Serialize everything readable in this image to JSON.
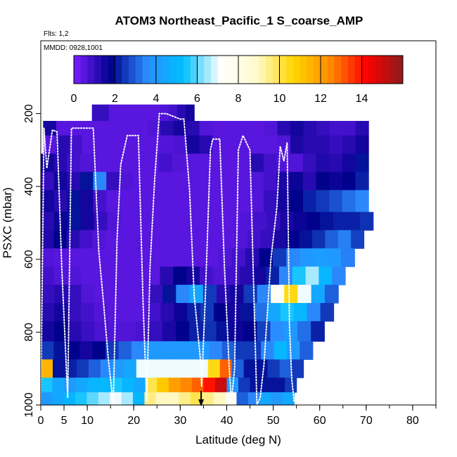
{
  "chart_data": {
    "type": "heatmap",
    "title": "ATOM3 Northeast_Pacific_1 S_coarse_AMP",
    "flights_label": "Flts: 1,2",
    "dates_label": "MMDD: 0928,1001",
    "xlabel": "Latitude (deg N)",
    "ylabel": "PSXC (mbar)",
    "x_ticks": [
      "0",
      "5",
      "10",
      "20",
      "30",
      "40",
      "50",
      "60",
      "70",
      "80"
    ],
    "y_ticks": [
      "200",
      "400",
      "600",
      "800",
      "1000"
    ],
    "xlim": [
      0,
      85
    ],
    "ylim": [
      1000,
      0
    ],
    "colorbar": {
      "ticks": [
        "0",
        "2",
        "4",
        "6",
        "8",
        "10",
        "12",
        "14"
      ],
      "range": [
        0,
        16
      ],
      "colors": [
        "#7a1fff",
        "#00008b",
        "#2b8cff",
        "#00bfff",
        "#ffffff",
        "#fffacd",
        "#ffd700",
        "#ff8c00",
        "#ff0000",
        "#8b1a1a"
      ]
    },
    "marker_latitude": 34.5,
    "pressure_bands": [
      {
        "p0": 175,
        "p1": 220,
        "x0": 11,
        "x1": 33,
        "values": [
          1,
          1,
          0.5,
          0.5,
          0.5,
          0.5,
          0.5,
          0.5,
          0.6,
          0.8,
          1.2,
          1.5
        ]
      },
      {
        "p0": 220,
        "p1": 260,
        "x0": 0.5,
        "x1": 70.5,
        "values": [
          1.5,
          0.5,
          0.5,
          0.5,
          0.5,
          0.5,
          0.5,
          0.5,
          0.6,
          1.2,
          1.5,
          1.2,
          0.6,
          0.5,
          0.5,
          0.5,
          0.5,
          0.6,
          1.2,
          1.5,
          1.2,
          1.0,
          0.8,
          0.8,
          1.2
        ]
      },
      {
        "p0": 260,
        "p1": 310,
        "x0": 0.5,
        "x1": 70.5,
        "values": [
          0.5,
          1.2,
          0.8,
          0.5,
          0.5,
          0.5,
          0.5,
          0.5,
          0.5,
          0.6,
          0.7,
          1.5,
          1.2,
          0.5,
          0.5,
          0.5,
          0.5,
          0.5,
          0.6,
          1.4,
          1.2,
          1.2,
          1.0,
          1.2,
          1.5
        ]
      },
      {
        "p0": 310,
        "p1": 360,
        "x0": 0,
        "x1": 70.5,
        "values": [
          1.5,
          1.2,
          0.8,
          0.6,
          0.5,
          0.5,
          0.5,
          0.5,
          0.5,
          0.8,
          0.6,
          0.5,
          0.5,
          0.5,
          0.5,
          0.5,
          1.2,
          0.8,
          0.6,
          0.6,
          1.0,
          1.3,
          1.2,
          1.5,
          2.0
        ]
      },
      {
        "p0": 360,
        "p1": 410,
        "x0": 0,
        "x1": 70.5,
        "values": [
          1.0,
          1.5,
          1.2,
          2.0,
          3.5,
          1.0,
          0.6,
          0.5,
          0.5,
          0.5,
          0.5,
          0.5,
          0.5,
          0.5,
          0.5,
          0.5,
          0.6,
          0.8,
          1.4,
          1.6,
          1.2,
          1.8,
          1.6,
          1.8,
          2.2
        ]
      },
      {
        "p0": 410,
        "p1": 470,
        "x0": 0,
        "x1": 70.5,
        "values": [
          1.5,
          1.2,
          2.0,
          1.5,
          0.8,
          0.5,
          0.5,
          0.5,
          0.5,
          0.5,
          0.5,
          0.5,
          0.5,
          0.5,
          0.5,
          0.5,
          0.6,
          1.0,
          1.5,
          1.8,
          2.2,
          2.5,
          2.8,
          3.2,
          3.5
        ]
      },
      {
        "p0": 470,
        "p1": 520,
        "x0": 0,
        "x1": 71.5,
        "values": [
          1.2,
          1.6,
          2.0,
          1.5,
          1.0,
          0.6,
          0.5,
          0.5,
          0.5,
          0.5,
          0.5,
          0.5,
          0.5,
          0.5,
          0.5,
          0.6,
          0.8,
          1.0,
          1.4,
          1.6,
          1.8,
          2.0,
          2.2,
          2.2,
          2.4
        ]
      },
      {
        "p0": 520,
        "p1": 570,
        "x0": 0,
        "x1": 69.5,
        "values": [
          1.3,
          1.8,
          1.2,
          0.8,
          0.6,
          0.5,
          0.5,
          0.5,
          0.5,
          0.5,
          0.5,
          0.5,
          0.5,
          0.5,
          0.5,
          0.6,
          0.8,
          1.0,
          1.4,
          1.7,
          2.0,
          2.4,
          3.0,
          3.4,
          2.6
        ]
      },
      {
        "p0": 570,
        "p1": 620,
        "x0": 0,
        "x1": 67.5,
        "values": [
          0.6,
          0.5,
          0.5,
          0.5,
          0.5,
          0.5,
          0.5,
          0.5,
          0.5,
          0.5,
          0.5,
          0.5,
          0.5,
          0.6,
          0.8,
          1.2,
          1.8,
          2.5,
          3.5,
          4.0,
          4.2,
          4.0,
          3.4
        ]
      },
      {
        "p0": 620,
        "p1": 670,
        "x0": 0,
        "x1": 65.5,
        "values": [
          0.8,
          0.6,
          0.6,
          0.5,
          0.5,
          0.5,
          0.5,
          0.5,
          0.5,
          1.2,
          1.8,
          1.5,
          0.8,
          0.6,
          0.8,
          1.2,
          1.5,
          2.2,
          3.5,
          5.5,
          6.5,
          5.0,
          3.5
        ]
      },
      {
        "p0": 670,
        "p1": 720,
        "x0": 0,
        "x1": 64,
        "values": [
          1.0,
          1.2,
          1.0,
          0.6,
          0.5,
          0.5,
          0.5,
          0.5,
          1.0,
          2.0,
          3.5,
          4.5,
          2.5,
          1.2,
          1.5,
          2.5,
          3.5,
          7.5,
          10.5,
          7.0,
          4.5,
          3.0
        ]
      },
      {
        "p0": 720,
        "p1": 770,
        "x0": 0,
        "x1": 63,
        "values": [
          1.2,
          1.5,
          1.0,
          0.8,
          0.6,
          0.5,
          0.5,
          0.5,
          0.8,
          1.2,
          1.6,
          2.2,
          2.5,
          1.8,
          1.5,
          2.0,
          3.2,
          4.5,
          5.5,
          5.0,
          3.5,
          2.5
        ]
      },
      {
        "p0": 770,
        "p1": 825,
        "x0": 0,
        "x1": 61,
        "values": [
          1.5,
          1.8,
          1.2,
          0.9,
          0.7,
          0.6,
          0.6,
          0.7,
          1.0,
          1.4,
          1.8,
          2.2,
          2.4,
          2.0,
          1.6,
          1.8,
          2.6,
          3.6,
          4.0,
          3.2,
          2.2
        ]
      },
      {
        "p0": 825,
        "p1": 875,
        "x0": 0,
        "x1": 58.5,
        "values": [
          2.5,
          2.0,
          1.8,
          1.5,
          1.8,
          2.5,
          3.0,
          3.5,
          4.0,
          4.0,
          4.0,
          4.0,
          4.0,
          3.5,
          3.0,
          2.5,
          2.5,
          3.5,
          5.0,
          4.0,
          3.0
        ]
      },
      {
        "p0": 875,
        "p1": 925,
        "x0": 0,
        "x1": 56.5,
        "values": [
          11.5,
          2.0,
          2.2,
          2.5,
          3.0,
          3.5,
          4.0,
          4.5,
          7.0,
          7.0,
          7.0,
          7.0,
          7.0,
          7.0,
          10.5,
          13.0,
          3.0,
          2.0,
          2.0,
          2.5,
          3.0,
          2.5
        ]
      },
      {
        "p0": 925,
        "p1": 965,
        "x0": 0,
        "x1": 55,
        "values": [
          5.5,
          4.5,
          4.0,
          4.5,
          5.0,
          5.0,
          5.5,
          5.0,
          4.5,
          10.0,
          11.0,
          12.0,
          12.5,
          13.0,
          14.0,
          15.0,
          4.0,
          2.5,
          2.0,
          2.0,
          2.0,
          2.5
        ]
      },
      {
        "p0": 965,
        "p1": 1000,
        "x0": 0,
        "x1": 54.5,
        "values": [
          4.0,
          4.5,
          5.0,
          5.5,
          6.0,
          6.5,
          7.0,
          6.5,
          5.0,
          9.5,
          9.0,
          9.0,
          9.5,
          10.0,
          9.5,
          9.0,
          7.5,
          3.0,
          3.5,
          4.5,
          4.0,
          4.5
        ]
      }
    ],
    "flight_track": [
      [
        0,
        1000
      ],
      [
        0.7,
        240
      ],
      [
        1.3,
        350
      ],
      [
        2.5,
        245
      ],
      [
        3.5,
        250
      ],
      [
        4.5,
        620
      ],
      [
        5.8,
        980
      ],
      [
        6.6,
        240
      ],
      [
        7.5,
        240
      ],
      [
        10,
        240
      ],
      [
        11.3,
        240
      ],
      [
        12.5,
        580
      ],
      [
        13.5,
        720
      ],
      [
        14.5,
        870
      ],
      [
        15.6,
        1000
      ],
      [
        16.4,
        550
      ],
      [
        17.2,
        340
      ],
      [
        18.6,
        260
      ],
      [
        21,
        260
      ],
      [
        22,
        720
      ],
      [
        22.8,
        990
      ],
      [
        23.5,
        620
      ],
      [
        24.5,
        380
      ],
      [
        25.5,
        200
      ],
      [
        27,
        200
      ],
      [
        30,
        215
      ],
      [
        30.8,
        215
      ],
      [
        32,
        410
      ],
      [
        33,
        700
      ],
      [
        34.3,
        870
      ],
      [
        34.6,
        950
      ],
      [
        35.4,
        700
      ],
      [
        36.5,
        300
      ],
      [
        37,
        270
      ],
      [
        38.5,
        270
      ],
      [
        39.5,
        620
      ],
      [
        40.5,
        890
      ],
      [
        41,
        990
      ],
      [
        41.7,
        900
      ],
      [
        42.5,
        300
      ],
      [
        43.5,
        260
      ],
      [
        45,
        300
      ],
      [
        46.5,
        1000
      ],
      [
        47.2,
        980
      ],
      [
        48,
        890
      ],
      [
        49.5,
        600
      ],
      [
        50.8,
        455
      ],
      [
        51.5,
        290
      ],
      [
        52.3,
        330
      ],
      [
        53,
        280
      ],
      [
        53.5,
        780
      ],
      [
        54,
        930
      ],
      [
        54.5,
        990
      ]
    ]
  }
}
